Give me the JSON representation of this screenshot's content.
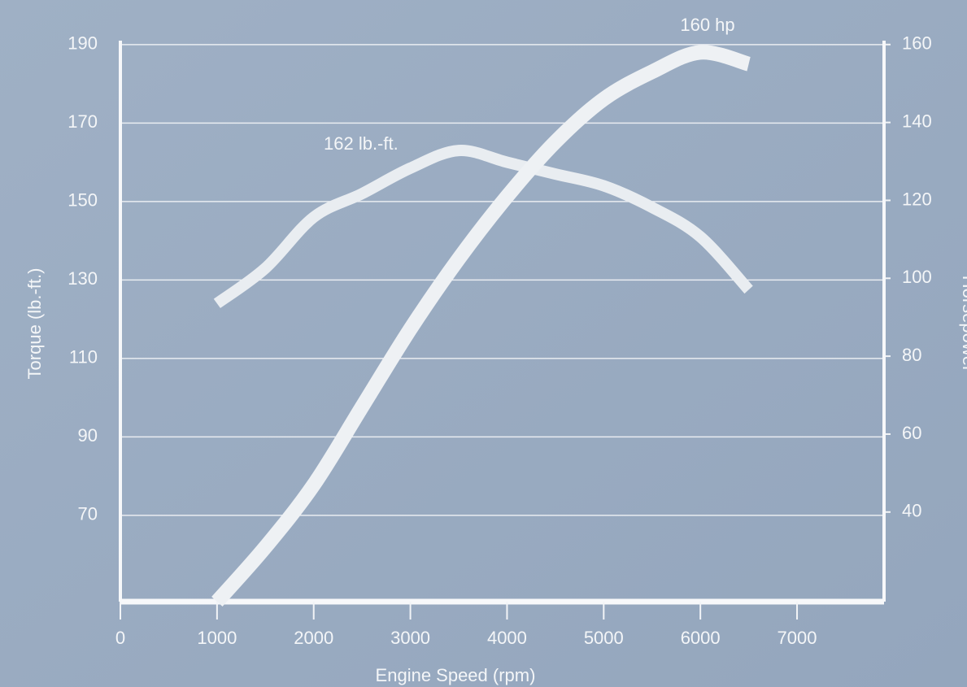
{
  "chart_data": {
    "type": "line",
    "x_label": "Engine Speed (rpm)",
    "y_label": "Torque (lb.-ft.)",
    "y2_label": "Horsepower",
    "annotations": [
      "162 lb.-ft.",
      "160 hp"
    ],
    "x": [
      1000,
      1500,
      2000,
      2500,
      3000,
      3500,
      4000,
      4500,
      5000,
      5500,
      6000,
      6500
    ],
    "series": [
      {
        "name": "Torque",
        "color": "#e9edf1",
        "values": [
          124,
          133,
          146,
          152,
          158.5,
          163,
          160,
          157,
          154,
          148.5,
          141,
          127.5
        ]
      },
      {
        "name": "Horsepower",
        "color": "#eef1f4",
        "axis": "y2",
        "values": [
          17,
          31,
          47,
          67,
          87,
          105,
          121,
          135,
          146,
          153,
          158,
          155
        ]
      }
    ],
    "xlim": [
      0,
      7900
    ],
    "ylim": [
      48,
      191
    ],
    "y2lim": [
      17,
      161
    ],
    "xticks": [
      0,
      1000,
      2000,
      3000,
      4000,
      5000,
      6000,
      7000
    ],
    "yticks": [
      70,
      90,
      110,
      130,
      150,
      170,
      190
    ],
    "y2ticks": [
      40,
      60,
      80,
      100,
      120,
      140,
      160
    ],
    "grid": true
  }
}
